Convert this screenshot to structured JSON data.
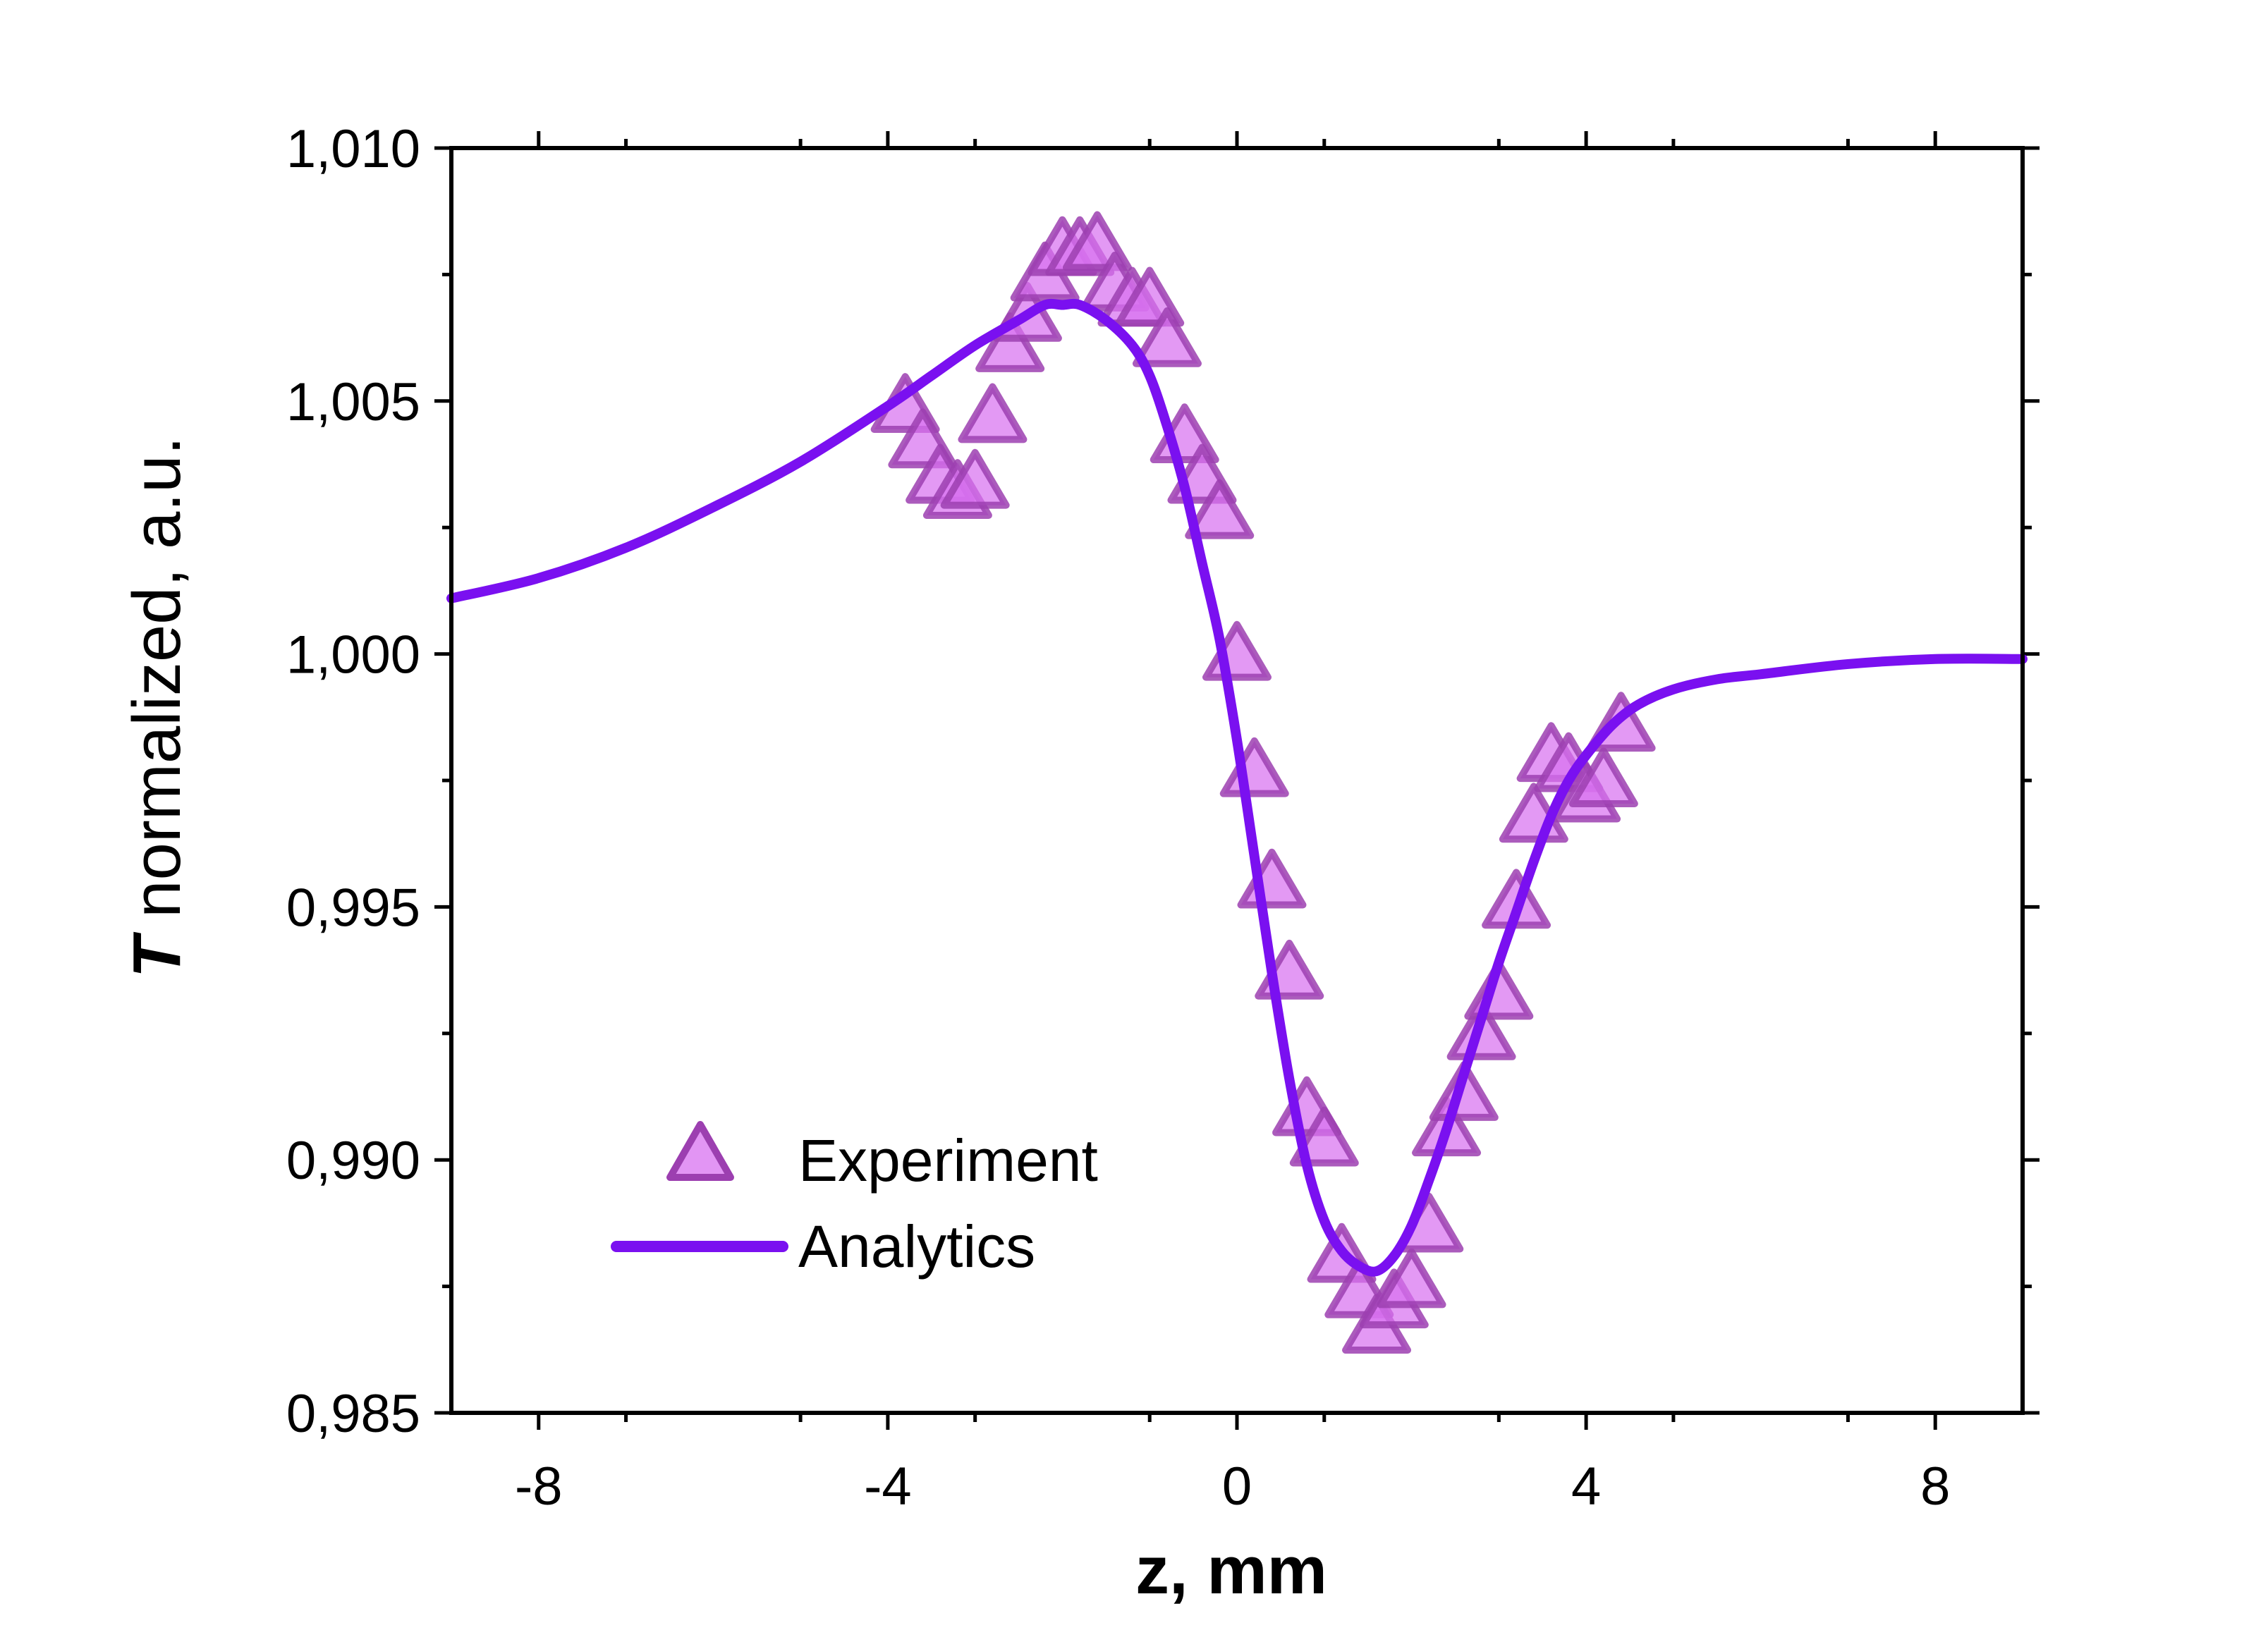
{
  "chart_data": {
    "type": "scatter",
    "xlabel": "z, mm",
    "ylabel_bold": "T",
    "ylabel_rest": " normalized, a.u.",
    "xlim": [
      -9,
      9
    ],
    "ylim": [
      0.985,
      1.01
    ],
    "x_ticks": [
      {
        "value": -8,
        "label": "-8"
      },
      {
        "value": -4,
        "label": "-4"
      },
      {
        "value": 0,
        "label": "0"
      },
      {
        "value": 4,
        "label": "4"
      },
      {
        "value": 8,
        "label": "8"
      }
    ],
    "y_ticks": [
      {
        "value": 0.985,
        "label": "0,985"
      },
      {
        "value": 0.99,
        "label": "0,990"
      },
      {
        "value": 0.995,
        "label": "0,995"
      },
      {
        "value": 1.0,
        "label": "1,000"
      },
      {
        "value": 1.005,
        "label": "1,005"
      },
      {
        "value": 1.01,
        "label": "1,010"
      }
    ],
    "x_minor_step": 2,
    "y_minor_step": 0.0025,
    "legend": {
      "position": "bottom-left",
      "entries": [
        "Experiment",
        "Analytics"
      ]
    },
    "colors": {
      "experiment_fill": "#d872f0",
      "experiment_edge": "#9c3fb0",
      "analytics": "#7a10f0"
    },
    "series": [
      {
        "name": "Experiment",
        "marker": "triangle",
        "x": [
          -3.8,
          -3.6,
          -3.4,
          -3.2,
          -3.0,
          -2.8,
          -2.6,
          -2.4,
          -2.2,
          -2.0,
          -1.8,
          -1.6,
          -1.4,
          -1.2,
          -1.0,
          -0.8,
          -0.6,
          -0.4,
          -0.2,
          0.0,
          0.2,
          0.4,
          0.6,
          0.8,
          1.0,
          1.2,
          1.4,
          1.6,
          1.8,
          2.0,
          2.2,
          2.4,
          2.6,
          2.8,
          3.0,
          3.2,
          3.4,
          3.6,
          3.8,
          4.0,
          4.2,
          4.4
        ],
        "y": [
          1.0049,
          1.0042,
          1.0035,
          1.0032,
          1.0034,
          1.0047,
          1.0061,
          1.0067,
          1.0075,
          1.008,
          1.008,
          1.0081,
          1.0073,
          1.007,
          1.007,
          1.0062,
          1.0043,
          1.0035,
          1.0028,
          1.0,
          0.9977,
          0.9955,
          0.9937,
          0.991,
          0.9904,
          0.9881,
          0.9874,
          0.9867,
          0.9872,
          0.9876,
          0.9887,
          0.9906,
          0.9913,
          0.9925,
          0.9933,
          0.9951,
          0.9968,
          0.998,
          0.9978,
          0.9972,
          0.9975,
          0.9986
        ]
      },
      {
        "name": "Analytics",
        "type": "line",
        "x": [
          -9,
          -8,
          -7,
          -6,
          -5,
          -4,
          -3.5,
          -3,
          -2.5,
          -2.2,
          -2.0,
          -1.8,
          -1.5,
          -1.2,
          -1.0,
          -0.8,
          -0.6,
          -0.4,
          -0.2,
          0.0,
          0.2,
          0.4,
          0.6,
          0.8,
          1.0,
          1.2,
          1.4,
          1.6,
          1.8,
          2.0,
          2.2,
          2.4,
          2.6,
          2.8,
          3.0,
          3.2,
          3.4,
          3.6,
          3.8,
          4.0,
          4.3,
          4.6,
          5.0,
          5.5,
          6,
          7,
          8,
          9
        ],
        "y": [
          1.0011,
          1.0015,
          1.0021,
          1.0029,
          1.0038,
          1.0049,
          1.0055,
          1.0061,
          1.0066,
          1.0069,
          1.0069,
          1.0069,
          1.0066,
          1.0061,
          1.0055,
          1.0045,
          1.0033,
          1.0018,
          1.0003,
          0.9983,
          0.996,
          0.9937,
          0.9916,
          0.9899,
          0.9888,
          0.9882,
          0.9879,
          0.9878,
          0.9881,
          0.9887,
          0.9896,
          0.9906,
          0.9917,
          0.9928,
          0.9939,
          0.9949,
          0.9959,
          0.9968,
          0.9975,
          0.998,
          0.9986,
          0.999,
          0.9993,
          0.9995,
          0.9996,
          0.9998,
          0.9999,
          0.9999
        ]
      }
    ]
  }
}
